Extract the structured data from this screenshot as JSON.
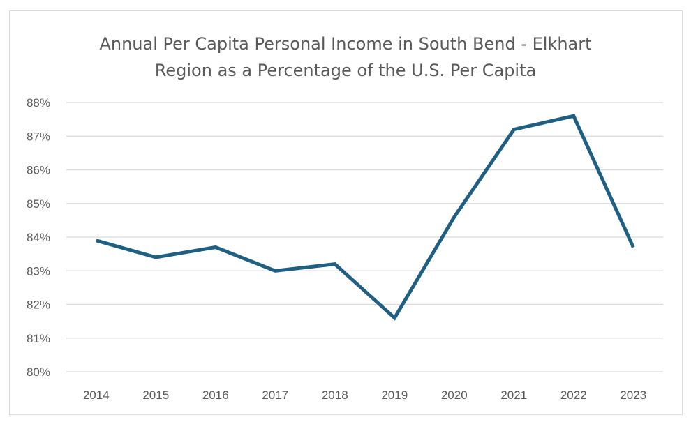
{
  "chart_data": {
    "type": "line",
    "title_line1": "Annual Per Capita Personal Income in South Bend - Elkhart",
    "title_line2": "Region as a Percentage of the U.S. Per Capita",
    "x": [
      "2014",
      "2015",
      "2016",
      "2017",
      "2018",
      "2019",
      "2020",
      "2021",
      "2022",
      "2023"
    ],
    "series": [
      {
        "values": [
          83.9,
          83.4,
          83.7,
          83.0,
          83.2,
          81.6,
          84.6,
          87.2,
          87.6,
          83.7
        ]
      }
    ],
    "yticks": [
      "80%",
      "81%",
      "82%",
      "83%",
      "84%",
      "85%",
      "86%",
      "87%",
      "88%"
    ],
    "ylim": [
      80,
      88
    ],
    "grid": true,
    "line_color": "#1f5f82",
    "grid_color": "#d9d9d9"
  }
}
